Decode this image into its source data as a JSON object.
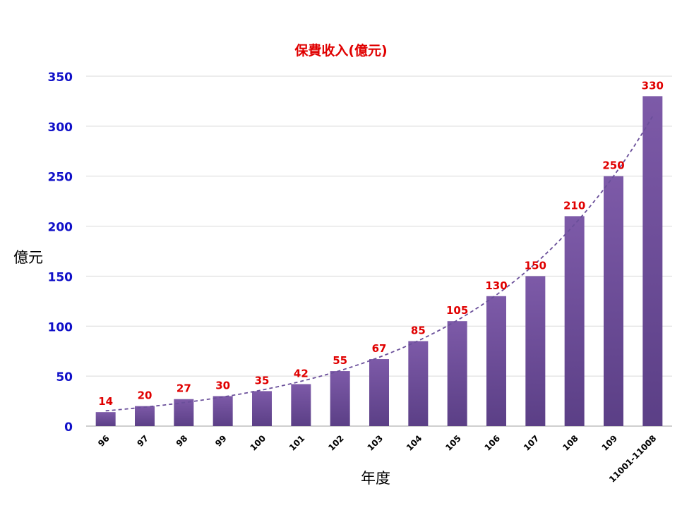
{
  "chart_data": {
    "type": "bar",
    "title": "保費收入(億元)",
    "xlabel": "年度",
    "ylabel": "億元",
    "categories": [
      "96",
      "97",
      "98",
      "99",
      "100",
      "101",
      "102",
      "103",
      "104",
      "105",
      "106",
      "107",
      "108",
      "109",
      "11001-11008"
    ],
    "values": [
      14,
      20,
      27,
      30,
      35,
      42,
      55,
      67,
      85,
      105,
      130,
      150,
      210,
      250,
      330
    ],
    "ylim": [
      0,
      350
    ],
    "yticks": [
      0,
      50,
      100,
      150,
      200,
      250,
      300,
      350
    ],
    "grid": true,
    "trendline": {
      "type": "exponential",
      "style": "dashed"
    },
    "colors": {
      "bar_top": "#7d5aa8",
      "bar_bottom": "#5b3f86",
      "title": "#e00000",
      "data_label": "#e00000",
      "ytick": "#1010c8",
      "xtick": "#000000",
      "grid": "#d9d9d9",
      "trend": "#6a4f9a"
    }
  }
}
